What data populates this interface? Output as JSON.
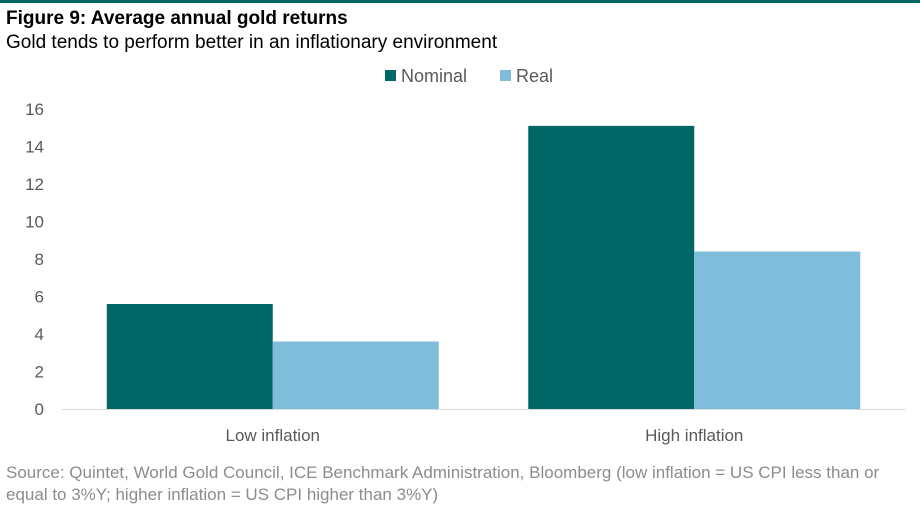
{
  "figure": {
    "title": "Figure 9: Average annual gold returns",
    "subtitle": "Gold tends to perform better in an inflationary environment",
    "source": "Source: Quintet, World Gold Council, ICE Benchmark Administration, Bloomberg (low inflation = US CPI less than or equal to 3%Y; higher inflation = US CPI higher than 3%Y)"
  },
  "colors": {
    "accent": "#006666",
    "nominal": "#006666",
    "real": "#7FBDDA",
    "axis_text": "#595959",
    "source_text": "#8c8c8c"
  },
  "chart_data": {
    "type": "bar",
    "title": "",
    "xlabel": "",
    "ylabel": "",
    "categories": [
      "Low inflation",
      "High inflation"
    ],
    "series": [
      {
        "name": "Nominal",
        "values": [
          5.6,
          15.1
        ]
      },
      {
        "name": "Real",
        "values": [
          3.6,
          8.4
        ]
      }
    ],
    "ylim": [
      0,
      16
    ],
    "yticks": [
      0,
      2,
      4,
      6,
      8,
      10,
      12,
      14,
      16
    ],
    "grid": false,
    "legend": "top-center"
  }
}
